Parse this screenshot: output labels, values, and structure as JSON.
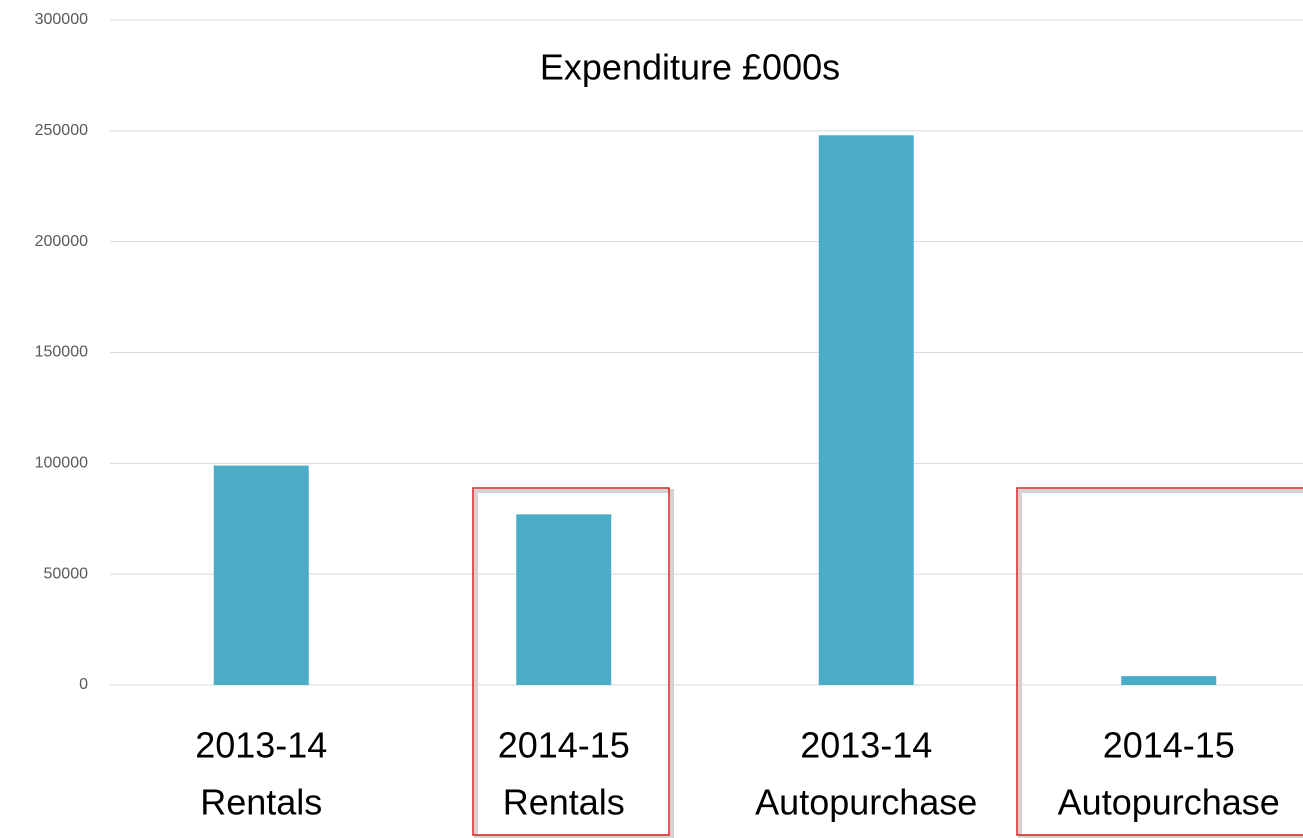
{
  "chart_data": {
    "type": "bar",
    "title": "Expenditure £000s",
    "categories": [
      [
        "2013-14",
        "Rentals"
      ],
      [
        "2014-15",
        "Rentals"
      ],
      [
        "2013-14",
        "Autopurchase"
      ],
      [
        "2014-15",
        "Autopurchase"
      ]
    ],
    "values": [
      99000,
      77000,
      248000,
      4000
    ],
    "color": "#4bacc6",
    "ylim": [
      0,
      300000
    ],
    "yticks": [
      0,
      50000,
      100000,
      150000,
      200000,
      250000,
      300000
    ],
    "grid": true
  }
}
